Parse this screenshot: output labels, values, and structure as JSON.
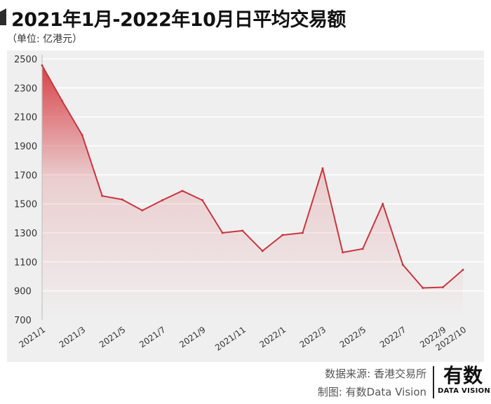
{
  "title": "2021年1月-2022年10月日平均交易额",
  "unit": "（单位: 亿港元）",
  "footer": {
    "source": "数据来源: 香港交易所",
    "credit": "制图: 有数Data Vision"
  },
  "logo": {
    "main": "有数",
    "sub": "DATA VISION"
  },
  "colors": {
    "line": "#c8363d",
    "fill_top": "#d53a40",
    "plot_background": "#efefef",
    "grid": "#ffffff"
  },
  "chart_data": {
    "type": "area",
    "title": "2021年1月-2022年10月日平均交易额",
    "xlabel": "",
    "ylabel": "",
    "x": [
      "2021/1",
      "2021/2",
      "2021/3",
      "2021/4",
      "2021/5",
      "2021/6",
      "2021/7",
      "2021/8",
      "2021/9",
      "2021/10",
      "2021/11",
      "2021/12",
      "2022/1",
      "2022/2",
      "2022/3",
      "2022/4",
      "2022/5",
      "2022/6",
      "2022/7",
      "2022/8",
      "2022/9",
      "2022/10"
    ],
    "x_tick_labels": [
      "2021/1",
      "2021/3",
      "2021/5",
      "2021/7",
      "2021/9",
      "2021/11",
      "2022/1",
      "2022/3",
      "2022/5",
      "2022/7",
      "2022/9",
      "2022/10"
    ],
    "series": [
      {
        "values": [
          2455,
          2210,
          1975,
          1555,
          1530,
          1455,
          1525,
          1590,
          1525,
          1300,
          1315,
          1175,
          1285,
          1300,
          1745,
          1165,
          1190,
          1500,
          1080,
          920,
          925,
          1045
        ]
      }
    ],
    "ylim": [
      700,
      2500
    ],
    "yticks": [
      700,
      900,
      1100,
      1300,
      1500,
      1700,
      1900,
      2100,
      2300,
      2500
    ],
    "grid": true,
    "legend": "none"
  }
}
